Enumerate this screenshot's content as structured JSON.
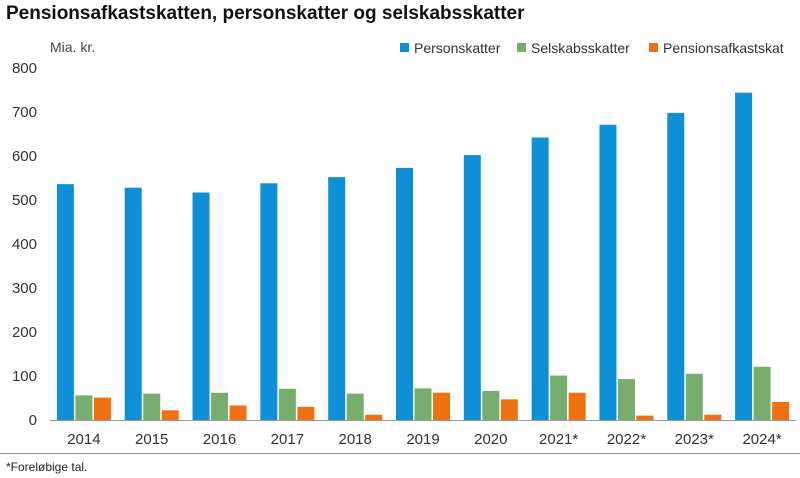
{
  "title": "Pensionsafkastskatten, personskatter og selskabsskatter",
  "footnote": "*Foreløbige tal.",
  "chart_data": {
    "type": "bar",
    "title": "Pensionsafkastskatten, personskatter og selskabsskatter",
    "ylabel": "Mia. kr.",
    "xlabel": "",
    "ylim": [
      0,
      800
    ],
    "yticks": [
      0,
      100,
      200,
      300,
      400,
      500,
      600,
      700,
      800
    ],
    "grid": false,
    "legend_position": "top-right",
    "categories": [
      "2014",
      "2015",
      "2016",
      "2017",
      "2018",
      "2019",
      "2020",
      "2021*",
      "2022*",
      "2023*",
      "2024*"
    ],
    "series": [
      {
        "name": "Personskatter",
        "color": "#0e8fd6",
        "values": [
          536,
          528,
          517,
          538,
          552,
          573,
          602,
          642,
          671,
          698,
          744
        ]
      },
      {
        "name": "Selskabsskatter",
        "color": "#79ad6f",
        "values": [
          56,
          60,
          62,
          71,
          60,
          72,
          66,
          101,
          93,
          105,
          121
        ]
      },
      {
        "name": "Pensionsafkastskat",
        "color": "#f07114",
        "values": [
          51,
          22,
          33,
          30,
          12,
          62,
          47,
          62,
          10,
          12,
          41
        ]
      }
    ]
  }
}
